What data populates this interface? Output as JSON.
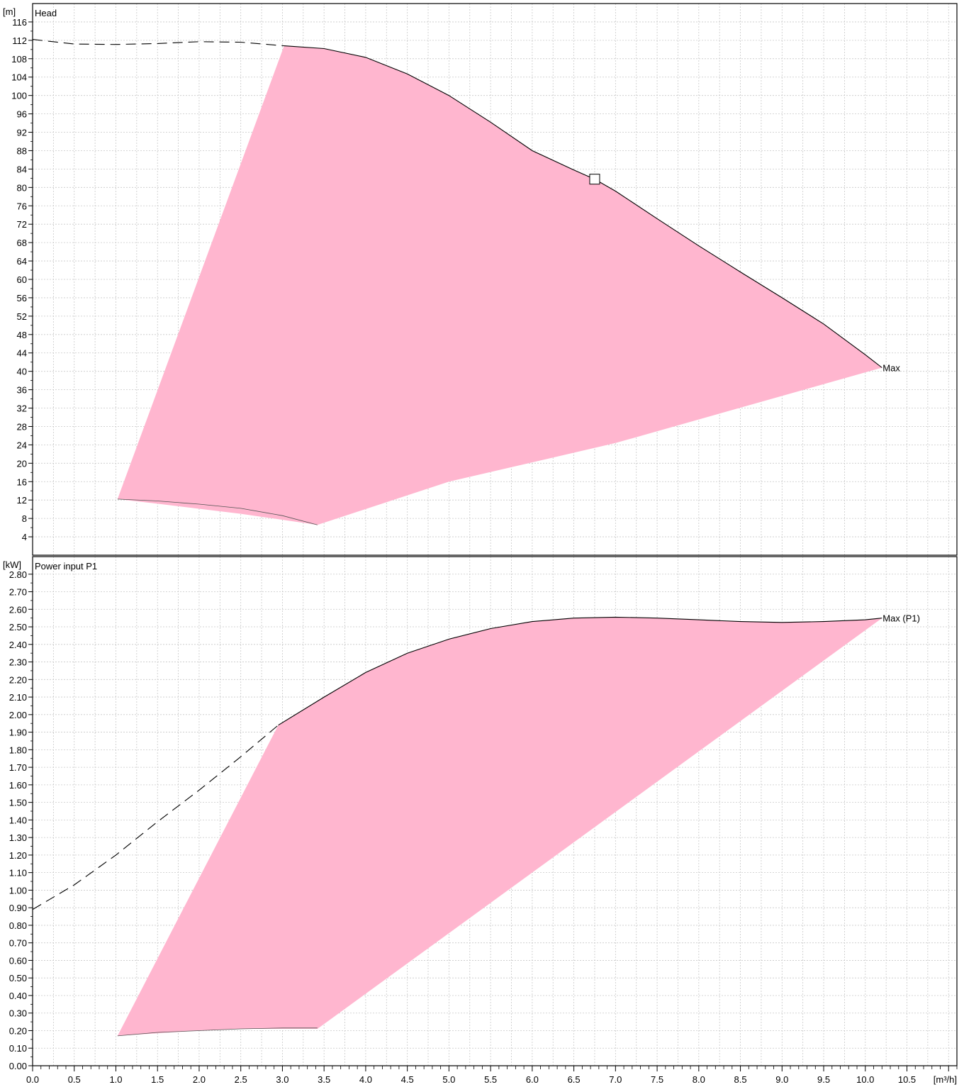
{
  "chart_data": [
    {
      "type": "line",
      "title": "Head",
      "ylabel": "[m]",
      "xlabel": "[m³/h]",
      "xlim": [
        0,
        11.1
      ],
      "ylim": [
        0,
        120
      ],
      "x_ticks": [
        0.0,
        0.5,
        1.0,
        1.5,
        2.0,
        2.5,
        3.0,
        3.5,
        4.0,
        4.5,
        5.0,
        5.5,
        6.0,
        6.5,
        7.0,
        7.5,
        8.0,
        8.5,
        9.0,
        9.5,
        10.0,
        10.5
      ],
      "y_ticks": [
        4,
        8,
        12,
        16,
        20,
        24,
        28,
        32,
        36,
        40,
        44,
        48,
        52,
        56,
        60,
        64,
        68,
        72,
        76,
        80,
        84,
        88,
        92,
        96,
        100,
        104,
        108,
        112,
        116
      ],
      "grid": true,
      "fill_color": "#ffb6cf",
      "operating_region": [
        [
          1.02,
          12.2
        ],
        [
          3.02,
          110.8
        ],
        [
          3.5,
          110.2
        ],
        [
          4.0,
          108.3
        ],
        [
          4.5,
          104.7
        ],
        [
          5.0,
          100.0
        ],
        [
          5.5,
          94.2
        ],
        [
          6.0,
          88.0
        ],
        [
          6.5,
          83.8
        ],
        [
          6.75,
          81.8
        ],
        [
          7.0,
          79.2
        ],
        [
          7.5,
          73.2
        ],
        [
          8.0,
          67.3
        ],
        [
          8.5,
          61.6
        ],
        [
          9.0,
          56.0
        ],
        [
          9.5,
          50.3
        ],
        [
          10.0,
          43.6
        ],
        [
          10.2,
          40.8
        ],
        [
          7.0,
          24.4
        ],
        [
          5.0,
          16.0
        ],
        [
          3.42,
          6.6
        ],
        [
          2.5,
          9.0
        ],
        [
          1.5,
          11.2
        ],
        [
          1.02,
          12.2
        ]
      ],
      "series": [
        {
          "name": "Max",
          "style": "solid",
          "x": [
            3.02,
            3.5,
            4.0,
            4.5,
            5.0,
            5.5,
            6.0,
            6.5,
            6.75,
            7.0,
            7.5,
            8.0,
            8.5,
            9.0,
            9.5,
            10.0,
            10.2
          ],
          "y": [
            110.8,
            110.2,
            108.3,
            104.7,
            100.0,
            94.2,
            88.0,
            83.8,
            81.8,
            79.2,
            73.2,
            67.3,
            61.6,
            56.0,
            50.3,
            43.6,
            40.8
          ]
        },
        {
          "style": "dashed",
          "x": [
            0.0,
            0.5,
            1.0,
            1.5,
            2.0,
            2.5,
            3.02
          ],
          "y": [
            112.2,
            111.2,
            111.1,
            111.3,
            111.7,
            111.6,
            110.8
          ]
        },
        {
          "style": "solid-thin",
          "x": [
            1.02,
            1.5,
            2.0,
            2.5,
            3.0,
            3.42
          ],
          "y": [
            12.2,
            11.8,
            11.1,
            10.2,
            8.6,
            6.6
          ]
        }
      ],
      "marker": {
        "x": 6.75,
        "y": 81.8,
        "shape": "square"
      },
      "annotations": [
        {
          "text": "Max",
          "x": 10.2,
          "y": 40.8
        }
      ]
    },
    {
      "type": "line",
      "title": "Power input P1",
      "ylabel": "[kW]",
      "xlabel": "[m³/h]",
      "xlim": [
        0,
        11.1
      ],
      "ylim": [
        0,
        2.9
      ],
      "x_ticks": [
        0.0,
        0.5,
        1.0,
        1.5,
        2.0,
        2.5,
        3.0,
        3.5,
        4.0,
        4.5,
        5.0,
        5.5,
        6.0,
        6.5,
        7.0,
        7.5,
        8.0,
        8.5,
        9.0,
        9.5,
        10.0,
        10.5
      ],
      "y_ticks": [
        0.0,
        0.1,
        0.2,
        0.3,
        0.4,
        0.5,
        0.6,
        0.7,
        0.8,
        0.9,
        1.0,
        1.1,
        1.2,
        1.3,
        1.4,
        1.5,
        1.6,
        1.7,
        1.8,
        1.9,
        2.0,
        2.1,
        2.2,
        2.3,
        2.4,
        2.5,
        2.6,
        2.7,
        2.8
      ],
      "y_tick_labels": [
        "0.00",
        "0.10",
        "0.20",
        "0.30",
        "0.40",
        "0.50",
        "0.60",
        "0.70",
        "0.80",
        "0.90",
        "1.00",
        "1.10",
        "1.20",
        "1.30",
        "1.40",
        "1.50",
        "1.60",
        "1.70",
        "1.80",
        "1.90",
        "2.00",
        "2.10",
        "2.20",
        "2.30",
        "2.40",
        "2.50",
        "2.60",
        "2.70",
        "2.80"
      ],
      "grid": true,
      "fill_color": "#ffb6cf",
      "operating_region": [
        [
          1.02,
          0.17
        ],
        [
          2.95,
          1.94
        ],
        [
          3.5,
          2.1
        ],
        [
          4.0,
          2.24
        ],
        [
          4.5,
          2.35
        ],
        [
          5.0,
          2.43
        ],
        [
          5.5,
          2.49
        ],
        [
          6.0,
          2.53
        ],
        [
          6.5,
          2.55
        ],
        [
          7.0,
          2.555
        ],
        [
          7.5,
          2.55
        ],
        [
          8.0,
          2.54
        ],
        [
          8.5,
          2.53
        ],
        [
          9.0,
          2.525
        ],
        [
          9.5,
          2.53
        ],
        [
          10.0,
          2.54
        ],
        [
          10.2,
          2.55
        ],
        [
          3.42,
          0.21
        ],
        [
          2.5,
          0.21
        ],
        [
          2.0,
          0.2
        ],
        [
          1.02,
          0.17
        ]
      ],
      "series": [
        {
          "name": "Max (P1)",
          "style": "solid",
          "x": [
            2.95,
            3.5,
            4.0,
            4.5,
            5.0,
            5.5,
            6.0,
            6.5,
            7.0,
            7.5,
            8.0,
            8.5,
            9.0,
            9.5,
            10.0,
            10.2
          ],
          "y": [
            1.94,
            2.1,
            2.24,
            2.35,
            2.43,
            2.49,
            2.53,
            2.55,
            2.555,
            2.55,
            2.54,
            2.53,
            2.525,
            2.53,
            2.54,
            2.55
          ]
        },
        {
          "style": "dashed",
          "x": [
            0.0,
            0.5,
            1.0,
            1.5,
            2.0,
            2.5,
            2.95
          ],
          "y": [
            0.89,
            1.03,
            1.2,
            1.39,
            1.57,
            1.76,
            1.94
          ]
        },
        {
          "style": "solid-thin",
          "x": [
            1.02,
            1.5,
            2.0,
            2.5,
            3.0,
            3.42
          ],
          "y": [
            0.17,
            0.19,
            0.2,
            0.21,
            0.215,
            0.215
          ]
        }
      ],
      "annotations": [
        {
          "text": "Max (P1)",
          "x": 10.2,
          "y": 2.55
        }
      ]
    }
  ]
}
